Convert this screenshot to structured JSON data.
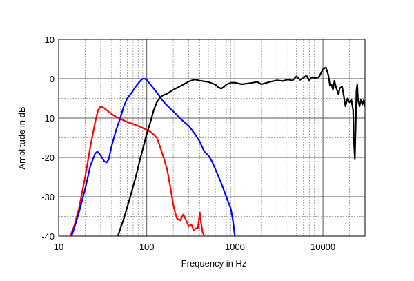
{
  "chart_data": {
    "type": "line",
    "xlabel": "Frequency in Hz",
    "ylabel": "Amplitude in dB",
    "xscale": "log",
    "xlim": [
      10,
      30000
    ],
    "ylim": [
      -40,
      10
    ],
    "grid": true,
    "x_ticks": [
      {
        "value": 10,
        "label": "10"
      },
      {
        "value": 100,
        "label": "100"
      },
      {
        "value": 1000,
        "label": "1000"
      },
      {
        "value": 10000,
        "label": "10000"
      }
    ],
    "y_ticks": [
      {
        "value": 10,
        "label": "10"
      },
      {
        "value": 0,
        "label": "0"
      },
      {
        "value": -10,
        "label": "-10"
      },
      {
        "value": -20,
        "label": "-20"
      },
      {
        "value": -30,
        "label": "-30"
      },
      {
        "value": -40,
        "label": "-40"
      }
    ],
    "series": [
      {
        "color": "#ff0000",
        "points": [
          [
            13.5,
            -40
          ],
          [
            15,
            -37.5
          ],
          [
            17,
            -33
          ],
          [
            20,
            -25
          ],
          [
            23,
            -17
          ],
          [
            26,
            -11
          ],
          [
            28,
            -8
          ],
          [
            30,
            -7
          ],
          [
            33,
            -7.5
          ],
          [
            36,
            -8.2
          ],
          [
            40,
            -9
          ],
          [
            45,
            -9.7
          ],
          [
            50,
            -10.2
          ],
          [
            60,
            -11
          ],
          [
            70,
            -11.5
          ],
          [
            80,
            -12
          ],
          [
            90,
            -12.5
          ],
          [
            100,
            -13
          ],
          [
            110,
            -13.5
          ],
          [
            120,
            -14.2
          ],
          [
            130,
            -15
          ],
          [
            140,
            -17
          ],
          [
            150,
            -19
          ],
          [
            160,
            -21
          ],
          [
            170,
            -23
          ],
          [
            180,
            -26
          ],
          [
            190,
            -29
          ],
          [
            200,
            -32
          ],
          [
            210,
            -34
          ],
          [
            220,
            -35.5
          ],
          [
            240,
            -36
          ],
          [
            260,
            -34.5
          ],
          [
            280,
            -36
          ],
          [
            300,
            -37.5
          ],
          [
            320,
            -37
          ],
          [
            340,
            -38.5
          ],
          [
            360,
            -38
          ],
          [
            380,
            -38
          ],
          [
            390,
            -36
          ],
          [
            400,
            -34
          ],
          [
            410,
            -36
          ],
          [
            430,
            -39
          ],
          [
            450,
            -40
          ]
        ]
      },
      {
        "color": "#0000ff",
        "points": [
          [
            14,
            -40
          ],
          [
            15,
            -38
          ],
          [
            17,
            -34
          ],
          [
            20,
            -28
          ],
          [
            23,
            -22
          ],
          [
            26,
            -19
          ],
          [
            27.5,
            -18.5
          ],
          [
            30,
            -19.5
          ],
          [
            33,
            -21
          ],
          [
            35,
            -21.3
          ],
          [
            37,
            -20.5
          ],
          [
            40,
            -17
          ],
          [
            45,
            -13
          ],
          [
            50,
            -10
          ],
          [
            55,
            -7
          ],
          [
            60,
            -5
          ],
          [
            65,
            -4
          ],
          [
            70,
            -3
          ],
          [
            75,
            -2
          ],
          [
            80,
            -1.2
          ],
          [
            85,
            -0.5
          ],
          [
            90,
            0
          ],
          [
            95,
            0
          ],
          [
            100,
            -0.3
          ],
          [
            110,
            -1.5
          ],
          [
            120,
            -2.5
          ],
          [
            130,
            -3.5
          ],
          [
            140,
            -4.5
          ],
          [
            150,
            -5.5
          ],
          [
            170,
            -6.8
          ],
          [
            200,
            -8.3
          ],
          [
            250,
            -10.5
          ],
          [
            300,
            -12
          ],
          [
            350,
            -14
          ],
          [
            400,
            -16
          ],
          [
            450,
            -18.5
          ],
          [
            500,
            -19.5
          ],
          [
            550,
            -21
          ],
          [
            600,
            -23
          ],
          [
            700,
            -26.5
          ],
          [
            800,
            -30
          ],
          [
            900,
            -33
          ],
          [
            950,
            -36
          ],
          [
            1000,
            -40
          ]
        ]
      },
      {
        "color": "#000000",
        "points": [
          [
            47,
            -40
          ],
          [
            55,
            -35.5
          ],
          [
            65,
            -30
          ],
          [
            75,
            -25
          ],
          [
            85,
            -20
          ],
          [
            95,
            -16
          ],
          [
            100,
            -14
          ],
          [
            110,
            -11
          ],
          [
            120,
            -8
          ],
          [
            130,
            -6
          ],
          [
            140,
            -5
          ],
          [
            150,
            -4.3
          ],
          [
            170,
            -3.8
          ],
          [
            200,
            -2.8
          ],
          [
            250,
            -1.7
          ],
          [
            300,
            -0.7
          ],
          [
            350,
            -0.2
          ],
          [
            400,
            -0.5
          ],
          [
            500,
            -0.8
          ],
          [
            600,
            -1.5
          ],
          [
            650,
            -2.2
          ],
          [
            700,
            -2.5
          ],
          [
            750,
            -2.1
          ],
          [
            800,
            -1.5
          ],
          [
            900,
            -1
          ],
          [
            1000,
            -1
          ],
          [
            1200,
            -1.4
          ],
          [
            1500,
            -1.1
          ],
          [
            1800,
            -0.8
          ],
          [
            2000,
            -1.4
          ],
          [
            2500,
            -0.8
          ],
          [
            3000,
            -0.4
          ],
          [
            3500,
            -0.6
          ],
          [
            4000,
            -0.2
          ],
          [
            4500,
            -0.5
          ],
          [
            5000,
            0.6
          ],
          [
            5500,
            -0.3
          ],
          [
            6000,
            0.2
          ],
          [
            6500,
            0.8
          ],
          [
            7000,
            -0.4
          ],
          [
            7500,
            0.4
          ],
          [
            8000,
            0.1
          ],
          [
            9000,
            0.4
          ],
          [
            10000,
            2.4
          ],
          [
            10800,
            2.9
          ],
          [
            11500,
            1
          ],
          [
            12000,
            -1.7
          ],
          [
            12500,
            -1.5
          ],
          [
            13000,
            -2.8
          ],
          [
            13500,
            -0.5
          ],
          [
            14000,
            -2
          ],
          [
            15000,
            -4
          ],
          [
            15500,
            -2.4
          ],
          [
            16500,
            -2
          ],
          [
            17000,
            -3.5
          ],
          [
            18000,
            -7
          ],
          [
            19000,
            -5
          ],
          [
            20000,
            -6
          ],
          [
            21000,
            -5.3
          ],
          [
            22000,
            -8
          ],
          [
            22500,
            -16
          ],
          [
            23000,
            -20.5
          ],
          [
            23500,
            -12
          ],
          [
            24000,
            -3
          ],
          [
            24500,
            -1.5
          ],
          [
            25000,
            -5.5
          ],
          [
            26000,
            -7
          ],
          [
            27000,
            -5.3
          ],
          [
            28000,
            -6.6
          ],
          [
            29000,
            -5.5
          ],
          [
            30000,
            -7
          ]
        ]
      }
    ]
  }
}
